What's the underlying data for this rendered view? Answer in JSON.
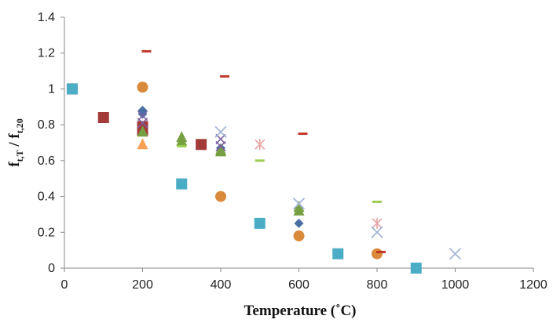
{
  "chart_data": {
    "type": "scatter",
    "xlabel": "Temperature (˚C)",
    "ylabel_main": "f",
    "ylabel_sub": "t,T",
    "ylabel_div": " / f",
    "ylabel_sub2": "t,20",
    "xlim": [
      0,
      1200
    ],
    "ylim": [
      0,
      1.4
    ],
    "xticks": [
      "0",
      "200",
      "400",
      "600",
      "800",
      "1000",
      "1200"
    ],
    "yticks": [
      "0",
      "0.2",
      "0.4",
      "0.6",
      "0.8",
      "1",
      "1.2",
      "1.4"
    ],
    "grid": false,
    "series": [
      {
        "marker": "diamond",
        "color": "#4a6fa5",
        "points": [
          [
            20,
            1.0
          ],
          [
            200,
            0.88
          ],
          [
            200,
            0.86
          ],
          [
            400,
            0.67
          ],
          [
            600,
            0.25
          ]
        ]
      },
      {
        "marker": "square",
        "color": "#a33a3a",
        "points": [
          [
            20,
            1.0
          ],
          [
            100,
            0.84
          ],
          [
            200,
            0.79
          ],
          [
            200,
            0.77
          ],
          [
            350,
            0.69
          ]
        ]
      },
      {
        "marker": "triangle",
        "color": "#77a043",
        "points": [
          [
            20,
            1.0
          ],
          [
            200,
            0.76
          ],
          [
            300,
            0.73
          ],
          [
            300,
            0.71
          ],
          [
            400,
            0.66
          ],
          [
            400,
            0.65
          ],
          [
            600,
            0.34
          ],
          [
            600,
            0.32
          ]
        ]
      },
      {
        "marker": "x",
        "color": "#7d5fa0",
        "points": [
          [
            200,
            0.85
          ],
          [
            200,
            0.81
          ],
          [
            400,
            0.72
          ],
          [
            400,
            0.68
          ]
        ]
      },
      {
        "marker": "asterisk",
        "color": "#e8a3a3",
        "points": [
          [
            500,
            0.69
          ],
          [
            800,
            0.25
          ]
        ]
      },
      {
        "marker": "circle",
        "color": "#d98a3b",
        "points": [
          [
            200,
            1.01
          ],
          [
            400,
            0.4
          ],
          [
            600,
            0.18
          ],
          [
            800,
            0.08
          ]
        ]
      },
      {
        "marker": "cross",
        "color": "#a3b5d6",
        "points": [
          [
            400,
            0.76
          ],
          [
            600,
            0.36
          ],
          [
            800,
            0.2
          ],
          [
            1000,
            0.08
          ]
        ]
      },
      {
        "marker": "dash",
        "color": "#c0392b",
        "points": [
          [
            210,
            1.21
          ],
          [
            410,
            1.07
          ],
          [
            610,
            0.75
          ],
          [
            810,
            0.09
          ]
        ]
      },
      {
        "marker": "dash",
        "color": "#9acd50",
        "points": [
          [
            300,
            0.68
          ],
          [
            500,
            0.6
          ],
          [
            800,
            0.37
          ]
        ]
      },
      {
        "marker": "triangle",
        "color": "#f7a054",
        "points": [
          [
            200,
            0.69
          ]
        ]
      },
      {
        "marker": "square",
        "color": "#4bacc6",
        "points": [
          [
            20,
            1.0
          ],
          [
            300,
            0.47
          ],
          [
            500,
            0.25
          ],
          [
            700,
            0.08
          ],
          [
            900,
            0.0
          ]
        ]
      }
    ]
  }
}
